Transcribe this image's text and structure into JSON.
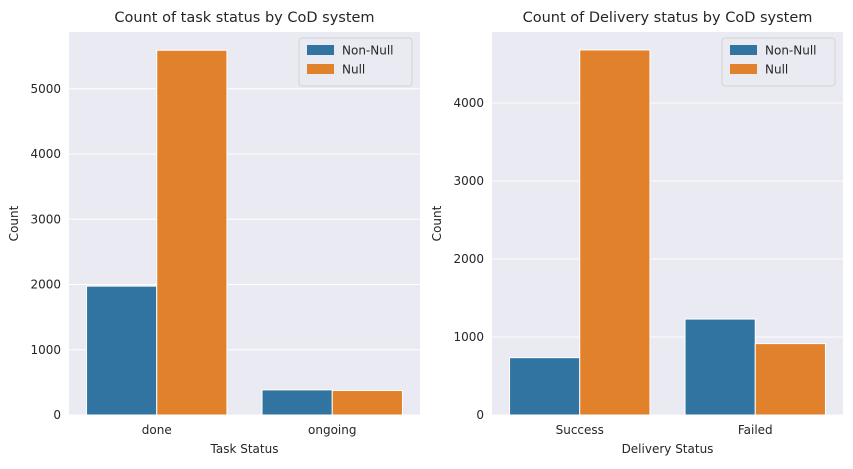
{
  "chart_data": [
    {
      "type": "bar",
      "title": "Count of task status by CoD system",
      "xlabel": "Task Status",
      "ylabel": "Count",
      "categories": [
        "done",
        "ongoing"
      ],
      "series": [
        {
          "name": "Non-Null",
          "values": [
            1975,
            385
          ],
          "color": "#3274a1"
        },
        {
          "name": "Null",
          "values": [
            5590,
            375
          ],
          "color": "#e1812c"
        }
      ],
      "ylim": [
        0,
        5870
      ],
      "yticks": [
        0,
        1000,
        2000,
        3000,
        4000,
        5000
      ],
      "grid": true,
      "legend_position": "top-right"
    },
    {
      "type": "bar",
      "title": "Count of Delivery status by CoD system",
      "xlabel": "Delivery Status",
      "ylabel": "Count",
      "categories": [
        "Success",
        "Failed"
      ],
      "series": [
        {
          "name": "Non-Null",
          "values": [
            735,
            1230
          ],
          "color": "#3274a1"
        },
        {
          "name": "Null",
          "values": [
            4680,
            915
          ],
          "color": "#e1812c"
        }
      ],
      "ylim": [
        0,
        4910
      ],
      "yticks": [
        0,
        1000,
        2000,
        3000,
        4000
      ],
      "grid": true,
      "legend_position": "top-right"
    }
  ]
}
